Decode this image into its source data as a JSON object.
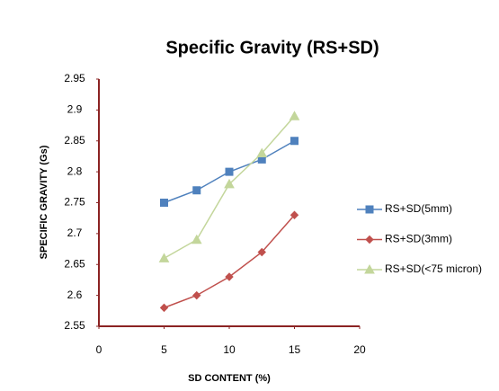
{
  "chart_data": {
    "type": "line",
    "title": "Specific Gravity (RS+SD)",
    "x_label": "SD CONTENT (%)",
    "y_label": "SPECIFIC GRAVITY (Gs)",
    "x": [
      5,
      7.5,
      10,
      12.5,
      15
    ],
    "series": [
      {
        "name": "RS+SD(5mm)",
        "color": "#4f81bd",
        "marker": "square",
        "values": [
          2.75,
          2.77,
          2.8,
          2.82,
          2.85
        ]
      },
      {
        "name": "RS+SD(3mm)",
        "color": "#c0504d",
        "marker": "diamond",
        "values": [
          2.58,
          2.6,
          2.63,
          2.67,
          2.73
        ]
      },
      {
        "name": "RS+SD(<75 micron)",
        "color": "#c3d69b",
        "marker": "triangle",
        "values": [
          2.66,
          2.69,
          2.78,
          2.83,
          2.89
        ]
      }
    ],
    "xlim": [
      0,
      20
    ],
    "xticks": [
      0,
      5,
      10,
      15,
      20
    ],
    "ylim": [
      2.55,
      2.95
    ],
    "yticks": [
      2.55,
      2.6,
      2.65,
      2.7,
      2.75,
      2.8,
      2.85,
      2.9,
      2.95
    ],
    "axis_color": "#8b2323",
    "legend": "right"
  }
}
